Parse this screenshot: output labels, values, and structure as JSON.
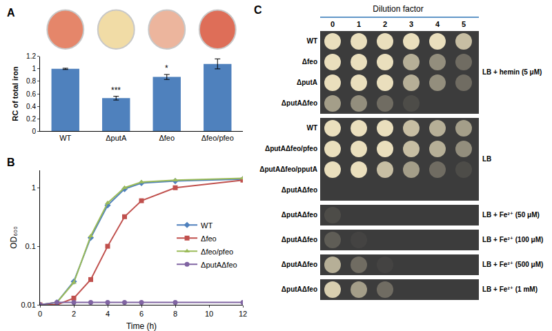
{
  "chart_data": [
    {
      "title": "A",
      "type": "bar",
      "categories": [
        "WT",
        "ΔputA",
        "Δfeo",
        "Δfeo/pfeo"
      ],
      "values": [
        1,
        0.53,
        0.87,
        1.08
      ],
      "errors": [
        0.01,
        0.03,
        0.04,
        0.08
      ],
      "annotations": [
        {
          "category": "ΔputA",
          "text": "***"
        },
        {
          "category": "Δfeo",
          "text": "*"
        }
      ],
      "ylabel": "RC of total iron",
      "ylim": [
        0,
        1.2
      ],
      "yticks": [
        0,
        0.2,
        0.4,
        0.6,
        0.8,
        1,
        1.2
      ],
      "color": "#4f81bd",
      "pellet_colors": [
        "#e5866a",
        "#f1dca6",
        "#ecb59d",
        "#de6e58"
      ]
    },
    {
      "title": "B",
      "type": "line",
      "log": "y",
      "x": [
        0,
        1,
        2,
        3,
        4,
        5,
        6,
        8,
        12
      ],
      "xlabel": "Time (h)",
      "ylabel": "OD₆₀₀",
      "xlim": [
        0,
        12
      ],
      "xticks": [
        0,
        2,
        4,
        6,
        8,
        10,
        12
      ],
      "ylim": [
        0.01,
        2
      ],
      "yticks": [
        0.01,
        0.1,
        1
      ],
      "legend": "right",
      "series": [
        {
          "name": "WT",
          "color": "#4f81bd",
          "marker": "diamond",
          "values": [
            0.01,
            0.011,
            0.025,
            0.14,
            0.5,
            0.95,
            1.2,
            1.3,
            1.4
          ]
        },
        {
          "name": "Δfeo",
          "color": "#c0504d",
          "marker": "square",
          "values": [
            0.01,
            0.01,
            0.013,
            0.027,
            0.1,
            0.32,
            0.6,
            1.0,
            1.35
          ]
        },
        {
          "name": "Δfeo/pfeo",
          "color": "#9bbb59",
          "marker": "triangle-up",
          "values": [
            0.01,
            0.011,
            0.024,
            0.15,
            0.55,
            1.0,
            1.25,
            1.35,
            1.45
          ]
        },
        {
          "name": "ΔputAΔfeo",
          "color": "#8064a2",
          "marker": "circle",
          "values": [
            0.01,
            0.011,
            0.011,
            0.011,
            0.011,
            0.011,
            0.011,
            0.011,
            0.011
          ]
        }
      ]
    },
    {
      "title": "C",
      "type": "spot_assay",
      "xlabel": "Dilution factor",
      "categories": [
        0,
        1,
        2,
        3,
        4,
        5
      ],
      "groups": [
        {
          "condition": "LB + hemin (5 μM)",
          "rows": [
            {
              "name": "WT",
              "growth": [
                1,
                1,
                1,
                1,
                1,
                0.8
              ]
            },
            {
              "name": "Δfeo",
              "growth": [
                1,
                1,
                1,
                0.7,
                0.5,
                0.3
              ]
            },
            {
              "name": "ΔputA",
              "growth": [
                1,
                1,
                1,
                0.7,
                0.5,
                0.3
              ]
            },
            {
              "name": "ΔputAΔfeo",
              "growth": [
                0.6,
                0.5,
                0.3,
                0.1,
                0,
                0
              ]
            }
          ]
        },
        {
          "condition": "LB",
          "rows": [
            {
              "name": "WT",
              "growth": [
                1,
                1,
                1,
                0.8,
                0.7,
                0.6
              ]
            },
            {
              "name": "ΔputAΔfeo/pfeo",
              "growth": [
                1,
                1,
                1,
                0.8,
                0.7,
                0.5
              ]
            },
            {
              "name": "ΔputAΔfeo/pputA",
              "growth": [
                1,
                1,
                0.8,
                0.6,
                0.3,
                0.1
              ]
            },
            {
              "name": "ΔputAΔfeo",
              "growth": [
                0,
                0,
                0,
                0,
                0,
                0
              ]
            }
          ]
        },
        {
          "condition": "LB + Fe²⁺ (50 μM)",
          "rows": [
            {
              "name": "ΔputAΔfeo",
              "growth": [
                0.1,
                0,
                0,
                0,
                0,
                0
              ]
            }
          ]
        },
        {
          "condition": "LB + Fe²⁺ (100 μM)",
          "rows": [
            {
              "name": "ΔputAΔfeo",
              "growth": [
                0.2,
                0.05,
                0,
                0,
                0,
                0
              ]
            }
          ]
        },
        {
          "condition": "LB + Fe²⁺ (500 μM)",
          "rows": [
            {
              "name": "ΔputAΔfeo",
              "growth": [
                0.7,
                0.3,
                0.05,
                0,
                0,
                0
              ]
            }
          ]
        },
        {
          "condition": "LB + Fe²⁺ (1 mM)",
          "rows": [
            {
              "name": "ΔputAΔfeo",
              "growth": [
                0.9,
                0.6,
                0.3,
                0,
                0,
                0
              ]
            }
          ]
        }
      ]
    }
  ]
}
